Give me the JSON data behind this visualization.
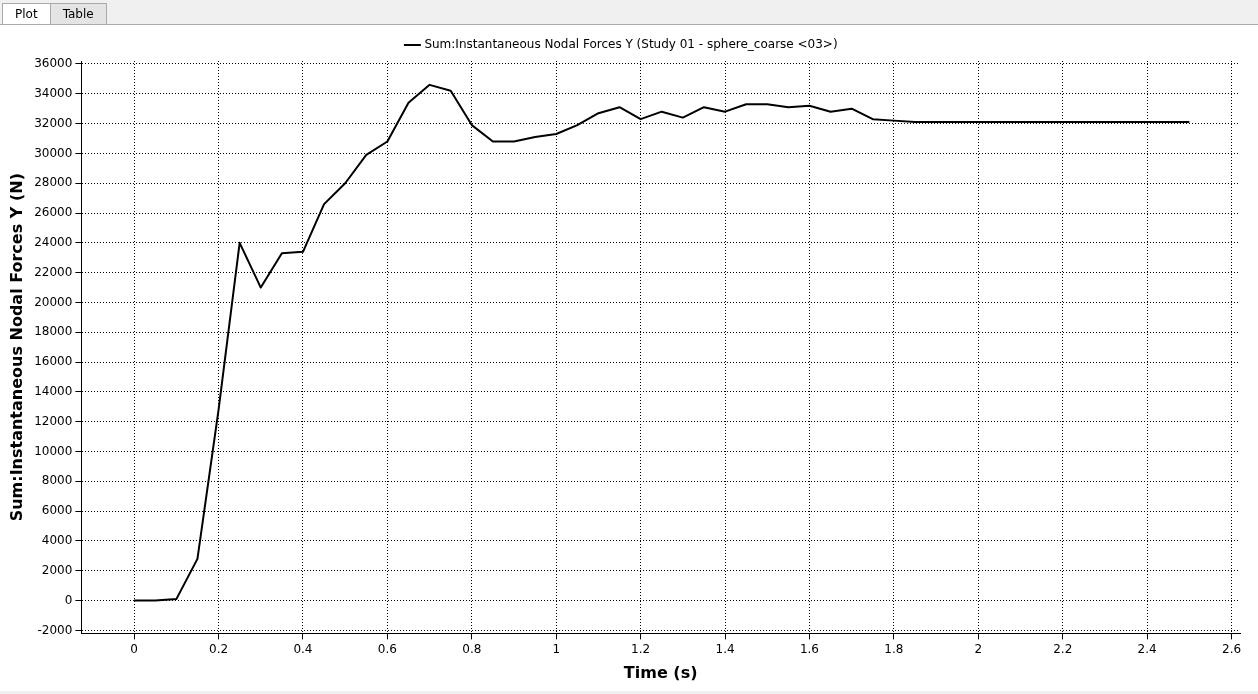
{
  "chart_data": {
    "type": "line",
    "xlabel": "Time (s)",
    "ylabel": "Sum:Instantaneous Nodal Forces Y (N)",
    "annotations": [
      "Plot",
      "Table"
    ],
    "x": [
      0,
      0.05,
      0.1,
      0.15,
      0.2,
      0.25,
      0.3,
      0.35,
      0.4,
      0.45,
      0.5,
      0.55,
      0.6,
      0.65,
      0.7,
      0.75,
      0.8,
      0.85,
      0.9,
      0.95,
      1.0,
      1.05,
      1.1,
      1.15,
      1.2,
      1.25,
      1.3,
      1.35,
      1.4,
      1.45,
      1.5,
      1.55,
      1.6,
      1.65,
      1.7,
      1.75,
      1.8,
      1.85,
      1.9,
      1.95,
      2.0,
      2.05,
      2.1,
      2.15,
      2.2,
      2.25,
      2.3,
      2.35,
      2.4,
      2.45,
      2.5
    ],
    "series": [
      {
        "name": "Sum:Instantaneous Nodal Forces Y (Study 01 - sphere_coarse <03>)",
        "color": "#000000",
        "values": [
          0,
          0,
          100,
          2800,
          12800,
          24000,
          21000,
          23300,
          23400,
          26600,
          28000,
          29900,
          30800,
          33400,
          34600,
          34200,
          31900,
          30800,
          30800,
          31100,
          31300,
          31900,
          32700,
          33100,
          32300,
          32800,
          32400,
          33100,
          32800,
          33300,
          33300,
          33100,
          33200,
          32800,
          33000,
          32300,
          32200,
          32100,
          32100,
          32100,
          32100,
          32100,
          32100,
          32100,
          32100,
          32100,
          32100,
          32100,
          32100,
          32100,
          32100
        ]
      }
    ],
    "xlim": [
      -0.125,
      2.62
    ],
    "ylim": [
      -2200,
      36200
    ],
    "xticks": [
      0,
      0.2,
      0.4,
      0.6,
      0.8,
      1,
      1.2,
      1.4,
      1.6,
      1.8,
      2,
      2.2,
      2.4,
      2.6
    ],
    "yticks": [
      -2000,
      0,
      2000,
      4000,
      6000,
      8000,
      10000,
      12000,
      14000,
      16000,
      18000,
      20000,
      22000,
      24000,
      26000,
      28000,
      30000,
      32000,
      34000,
      36000
    ],
    "grid": true,
    "legend": "top",
    "marker": "none",
    "line_style": "solid"
  }
}
